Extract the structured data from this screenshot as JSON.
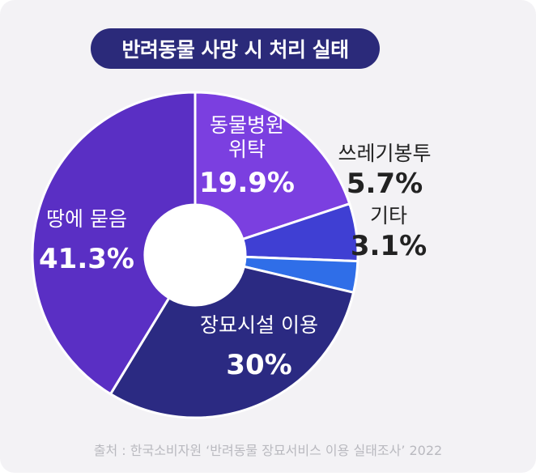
{
  "title": "반려동물 사망 시 처리 실태",
  "source": "출처 : 한국소비자원 ‘반려동물 장묘서비스 이용 실태조사’ 2022",
  "chart_data": {
    "type": "pie",
    "variant": "donut",
    "title": "반려동물 사망 시 처리 실태",
    "start_angle": "12 o'clock, clockwise",
    "slices": [
      {
        "label": "동물병원 위탁",
        "label_lines": [
          "동물병원",
          "위탁"
        ],
        "value": 19.9,
        "value_label": "19.9%",
        "color": "#7b3fe0"
      },
      {
        "label": "쓰레기봉투",
        "label_lines": [
          "쓰레기봉투"
        ],
        "value": 5.7,
        "value_label": "5.7%",
        "color": "#3f3fd3"
      },
      {
        "label": "기타",
        "label_lines": [
          "기타"
        ],
        "value": 3.1,
        "value_label": "3.1%",
        "color": "#2f6ee8"
      },
      {
        "label": "장묘시설 이용",
        "label_lines": [
          "장묘시설 이용"
        ],
        "value": 30,
        "value_label": "30%",
        "color": "#2b2a82"
      },
      {
        "label": "땅에 묻음",
        "label_lines": [
          "땅에 묻음"
        ],
        "value": 41.3,
        "value_label": "41.3%",
        "color": "#5a2fc4"
      }
    ]
  }
}
